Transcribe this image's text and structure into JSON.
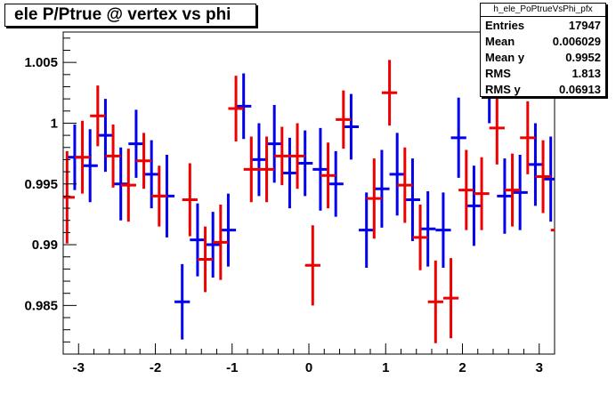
{
  "title": "ele P/Ptrue @ vertex vs phi",
  "stats": {
    "name": "h_ele_PoPtrueVsPhi_pfx",
    "rows": [
      {
        "label": "Entries",
        "value": "17947"
      },
      {
        "label": "Mean",
        "value": "0.006029"
      },
      {
        "label": "Mean y",
        "value": "0.9952"
      },
      {
        "label": "RMS",
        "value": "1.813"
      },
      {
        "label": "RMS y",
        "value": "0.06913"
      }
    ]
  },
  "chart_data": {
    "type": "scatter",
    "title": "ele P/Ptrue @ vertex vs phi",
    "xlabel": "",
    "ylabel": "",
    "xlim": [
      -3.2,
      3.2
    ],
    "ylim": [
      0.981,
      1.0075
    ],
    "x_ticks": [
      "-3",
      "-2",
      "-1",
      "0",
      "1",
      "2",
      "3"
    ],
    "y_ticks": [
      "0.985",
      "0.99",
      "0.995",
      "1",
      "1.005"
    ],
    "grid": false,
    "colors": {
      "blue": "#0000ee",
      "red": "#ee0000"
    },
    "series": [
      {
        "color": "#0000ee",
        "bin_half_width": 0.1,
        "points": [
          {
            "x": -3.05,
            "y": 0.9972,
            "err": 0.0027
          },
          {
            "x": -2.85,
            "y": 0.9965,
            "err": 0.003
          },
          {
            "x": -2.65,
            "y": 0.999,
            "err": 0.003
          },
          {
            "x": -2.45,
            "y": 0.995,
            "err": 0.003
          },
          {
            "x": -2.25,
            "y": 0.9983,
            "err": 0.0028
          },
          {
            "x": -2.05,
            "y": 0.9958,
            "err": 0.0028
          },
          {
            "x": -1.85,
            "y": 0.994,
            "err": 0.0034
          },
          {
            "x": -1.65,
            "y": 0.9853,
            "err": 0.0031
          },
          {
            "x": -1.45,
            "y": 0.9904,
            "err": 0.003
          },
          {
            "x": -1.25,
            "y": 0.99,
            "err": 0.0027
          },
          {
            "x": -1.05,
            "y": 0.9912,
            "err": 0.003
          },
          {
            "x": -0.85,
            "y": 1.0014,
            "err": 0.0027
          },
          {
            "x": -0.65,
            "y": 0.997,
            "err": 0.003
          },
          {
            "x": -0.45,
            "y": 0.9983,
            "err": 0.0032
          },
          {
            "x": -0.25,
            "y": 0.9959,
            "err": 0.0029
          },
          {
            "x": -0.05,
            "y": 0.9967,
            "err": 0.0027
          },
          {
            "x": 0.15,
            "y": 0.9962,
            "err": 0.0034
          },
          {
            "x": 0.35,
            "y": 0.995,
            "err": 0.0027
          },
          {
            "x": 0.55,
            "y": 0.9997,
            "err": 0.0027
          },
          {
            "x": 0.75,
            "y": 0.9912,
            "err": 0.0031
          },
          {
            "x": 0.95,
            "y": 0.9946,
            "err": 0.0032
          },
          {
            "x": 1.15,
            "y": 0.9958,
            "err": 0.0034
          },
          {
            "x": 1.35,
            "y": 0.9937,
            "err": 0.0034
          },
          {
            "x": 1.55,
            "y": 0.9913,
            "err": 0.0031
          },
          {
            "x": 1.75,
            "y": 0.9912,
            "err": 0.0031
          },
          {
            "x": 1.95,
            "y": 0.9988,
            "err": 0.0033
          },
          {
            "x": 2.15,
            "y": 0.9932,
            "err": 0.0033
          },
          {
            "x": 2.35,
            "y": 1.0033,
            "err": 0.0033
          },
          {
            "x": 2.55,
            "y": 0.994,
            "err": 0.0031
          },
          {
            "x": 2.75,
            "y": 0.9943,
            "err": 0.0031
          },
          {
            "x": 2.95,
            "y": 0.9966,
            "err": 0.0034
          },
          {
            "x": 3.15,
            "y": 0.9954,
            "err": 0.0035
          }
        ]
      },
      {
        "color": "#ee0000",
        "bin_half_width": 0.1,
        "points": [
          {
            "x": -3.15,
            "y": 0.9939,
            "err": 0.0038
          },
          {
            "x": -2.95,
            "y": 0.9972,
            "err": 0.003
          },
          {
            "x": -2.75,
            "y": 1.0006,
            "err": 0.0025
          },
          {
            "x": -2.55,
            "y": 0.9973,
            "err": 0.0026
          },
          {
            "x": -2.35,
            "y": 0.9949,
            "err": 0.003
          },
          {
            "x": -2.15,
            "y": 0.9969,
            "err": 0.0023
          },
          {
            "x": -1.95,
            "y": 0.994,
            "err": 0.0025
          },
          {
            "x": -1.55,
            "y": 0.9937,
            "err": 0.003
          },
          {
            "x": -1.35,
            "y": 0.9888,
            "err": 0.0027
          },
          {
            "x": -1.15,
            "y": 0.9902,
            "err": 0.0031
          },
          {
            "x": -0.95,
            "y": 1.0012,
            "err": 0.0027
          },
          {
            "x": -0.75,
            "y": 0.9962,
            "err": 0.0027
          },
          {
            "x": -0.55,
            "y": 0.9962,
            "err": 0.0027
          },
          {
            "x": -0.35,
            "y": 0.9973,
            "err": 0.0024
          },
          {
            "x": -0.15,
            "y": 0.9973,
            "err": 0.0027
          },
          {
            "x": 0.05,
            "y": 0.9883,
            "err": 0.0033
          },
          {
            "x": 0.25,
            "y": 0.9957,
            "err": 0.0027
          },
          {
            "x": 0.45,
            "y": 1.0003,
            "err": 0.0024
          },
          {
            "x": 0.85,
            "y": 0.9938,
            "err": 0.0033
          },
          {
            "x": 1.05,
            "y": 1.0025,
            "err": 0.0027
          },
          {
            "x": 1.25,
            "y": 0.9949,
            "err": 0.0031
          },
          {
            "x": 1.45,
            "y": 0.9906,
            "err": 0.0027
          },
          {
            "x": 1.65,
            "y": 0.9853,
            "err": 0.0034
          },
          {
            "x": 1.85,
            "y": 0.9856,
            "err": 0.0033
          },
          {
            "x": 2.05,
            "y": 0.9945,
            "err": 0.0033
          },
          {
            "x": 2.25,
            "y": 0.9942,
            "err": 0.003
          },
          {
            "x": 2.45,
            "y": 0.9996,
            "err": 0.003
          },
          {
            "x": 2.65,
            "y": 0.9945,
            "err": 0.003
          },
          {
            "x": 2.85,
            "y": 0.9988,
            "err": 0.003
          },
          {
            "x": 3.05,
            "y": 0.9956,
            "err": 0.003
          },
          {
            "x": 3.25,
            "y": 0.9912,
            "err": 0.0033
          }
        ]
      }
    ]
  }
}
